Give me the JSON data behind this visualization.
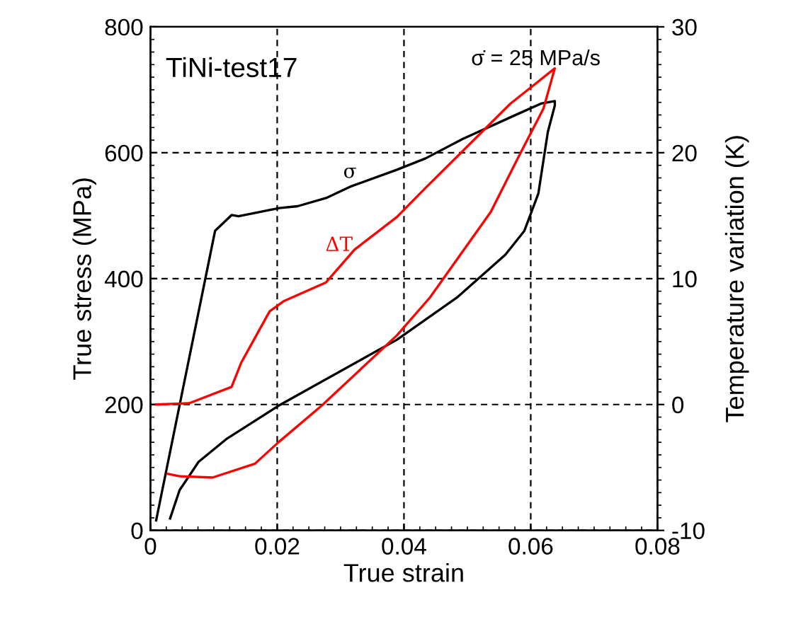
{
  "chart_data": {
    "type": "line",
    "xlabel": "True strain",
    "ylabel": "True stress (MPa)",
    "y2label": "Temperature variation (K)",
    "xlim": [
      0,
      0.08
    ],
    "xticks": [
      0,
      0.02,
      0.04,
      0.06,
      0.08
    ],
    "ylim": [
      0,
      800
    ],
    "yticks": [
      0,
      200,
      400,
      600,
      800
    ],
    "y2lim": [
      -10,
      30
    ],
    "y2ticks": [
      -10,
      0,
      10,
      20,
      30
    ],
    "grid": true,
    "legend": false,
    "annotations": [
      "TiNi-test17",
      "σ̇ = 25 MPa/s"
    ],
    "series": [
      {
        "name": "σ",
        "color": "#000000",
        "x": [
          0.0009,
          0.0102,
          0.0128,
          0.0139,
          0.0203,
          0.0232,
          0.0277,
          0.0315,
          0.0389,
          0.0434,
          0.0493,
          0.0574,
          0.0616,
          0.0638,
          0.0638,
          0.0627,
          0.0612,
          0.059,
          0.056,
          0.0485,
          0.0389,
          0.0202,
          0.0121,
          0.0076,
          0.0046,
          0.0031
        ],
        "values": [
          16,
          476,
          501,
          499,
          512,
          515,
          528,
          546,
          573,
          591,
          622,
          659,
          678,
          682,
          675,
          633,
          535,
          476,
          438,
          371,
          303,
          198,
          146,
          109,
          64,
          19
        ]
      },
      {
        "name": "ΔT",
        "color": "#ff0000",
        "axis": "y2",
        "x": [
          0.0009,
          0.0061,
          0.0128,
          0.0143,
          0.0188,
          0.021,
          0.0277,
          0.0322,
          0.0389,
          0.0434,
          0.0568,
          0.0638,
          0.062,
          0.0582,
          0.0537,
          0.0441,
          0.0389,
          0.027,
          0.0202,
          0.0165,
          0.0098,
          0.0046,
          0.0027
        ],
        "values": [
          0,
          0.1,
          1.4,
          3.3,
          7.4,
          8.2,
          9.7,
          12.3,
          14.9,
          17.2,
          23.9,
          26.7,
          23.5,
          19.8,
          15.3,
          8.5,
          5.5,
          -0.1,
          -3.0,
          -4.7,
          -5.8,
          -5.7,
          -5.5
        ]
      }
    ]
  }
}
